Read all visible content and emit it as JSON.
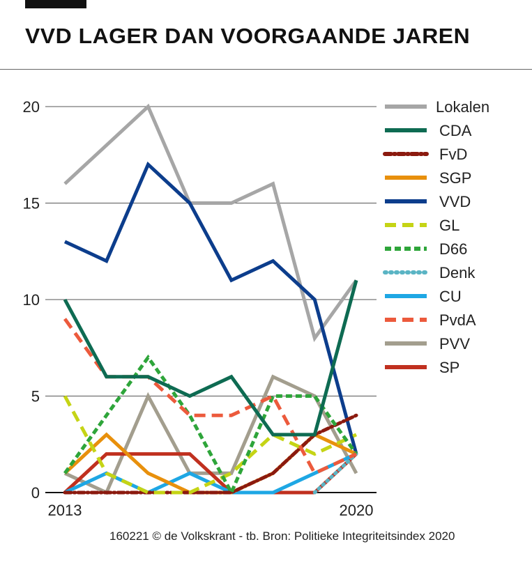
{
  "header": {
    "title": "VVD LAGER DAN VOORGAANDE JAREN"
  },
  "footer": {
    "credit": "160221 © de Volkskrant - tb. Bron: Politieke Integriteitsindex 2020"
  },
  "chart_data": {
    "type": "line",
    "title": "VVD LAGER DAN VOORGAANDE JAREN",
    "x": [
      2013,
      2014,
      2015,
      2016,
      2017,
      2018,
      2019,
      2020
    ],
    "x_tick_labels": [
      "2013",
      "2020"
    ],
    "y_ticks": [
      "0",
      "5",
      "10",
      "15",
      "20"
    ],
    "ylim": [
      0,
      20
    ],
    "grid": true,
    "legend_position": "right",
    "series": [
      {
        "name": "Lokalen",
        "color": "#a6a6a6",
        "dash": "solid",
        "values": [
          16,
          18,
          20,
          15,
          15,
          16,
          8,
          11
        ]
      },
      {
        "name": "CDA",
        "color": "#0e6b52",
        "dash": "solid",
        "values": [
          10,
          6,
          6,
          5,
          6,
          3,
          3,
          11
        ]
      },
      {
        "name": "FvD",
        "color": "#8b1a0f",
        "dash": "dashdot",
        "values": [
          0,
          0,
          0,
          0,
          0,
          1,
          3,
          4
        ]
      },
      {
        "name": "SGP",
        "color": "#e8900c",
        "dash": "solid",
        "values": [
          1,
          3,
          1,
          0,
          0,
          1,
          3,
          2
        ]
      },
      {
        "name": "VVD",
        "color": "#0c3d8c",
        "dash": "solid",
        "values": [
          13,
          12,
          17,
          15,
          11,
          12,
          10,
          2
        ]
      },
      {
        "name": "GL",
        "color": "#c5d415",
        "dash": "longdash",
        "values": [
          5,
          1,
          0,
          0,
          1,
          3,
          2,
          3
        ]
      },
      {
        "name": "D66",
        "color": "#2ea53a",
        "dash": "dash",
        "values": [
          1,
          4,
          7,
          4,
          0,
          5,
          5,
          2
        ]
      },
      {
        "name": "Denk",
        "color": "#5ab4c4",
        "dash": "dot",
        "values": [
          null,
          null,
          null,
          null,
          null,
          null,
          0,
          2
        ]
      },
      {
        "name": "CU",
        "color": "#1ea7e4",
        "dash": "solid",
        "values": [
          0,
          1,
          0,
          1,
          0,
          0,
          1,
          2
        ]
      },
      {
        "name": "PvdA",
        "color": "#ec5a3c",
        "dash": "longdash",
        "values": [
          9,
          6,
          6,
          4,
          4,
          5,
          1,
          2
        ]
      },
      {
        "name": "PVV",
        "color": "#a39e8e",
        "dash": "solid",
        "values": [
          1,
          0,
          5,
          1,
          1,
          6,
          5,
          1
        ]
      },
      {
        "name": "SP",
        "color": "#c0301f",
        "dash": "solid",
        "values": [
          0,
          2,
          2,
          2,
          0,
          0,
          0,
          2
        ]
      }
    ]
  }
}
